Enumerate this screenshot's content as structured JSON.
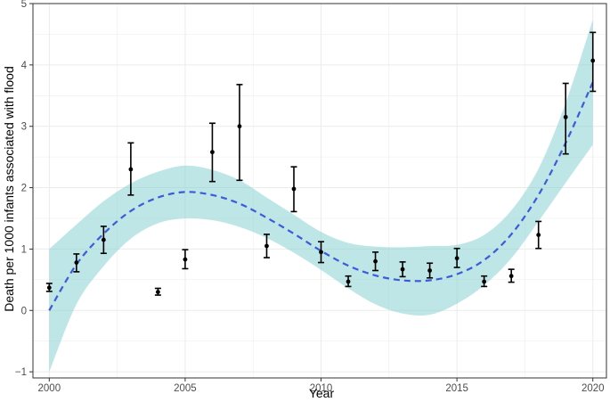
{
  "chart_data": {
    "type": "scatter",
    "xlabel": "Year",
    "ylabel": "Death per 1000 infants associated with flood",
    "xlim": [
      1999.4,
      2020.5
    ],
    "ylim": [
      -1.1,
      5.0
    ],
    "x_ticks": [
      2000,
      2005,
      2010,
      2015,
      2020
    ],
    "x_tick_labels": [
      "2000",
      "2005",
      "2010",
      "2015",
      "2020"
    ],
    "y_ticks": [
      -1,
      0,
      1,
      2,
      3,
      4,
      5
    ],
    "y_tick_labels": [
      "−1",
      "0",
      "1",
      "2",
      "3",
      "4",
      "5"
    ],
    "grid": true,
    "observations": [
      {
        "x": 2000,
        "y": 0.37,
        "low": 0.31,
        "high": 0.44
      },
      {
        "x": 2001,
        "y": 0.78,
        "low": 0.63,
        "high": 0.92
      },
      {
        "x": 2002,
        "y": 1.15,
        "low": 0.93,
        "high": 1.37
      },
      {
        "x": 2003,
        "y": 2.3,
        "low": 1.88,
        "high": 2.73
      },
      {
        "x": 2004,
        "y": 0.3,
        "low": 0.25,
        "high": 0.36
      },
      {
        "x": 2005,
        "y": 0.83,
        "low": 0.68,
        "high": 0.99
      },
      {
        "x": 2006,
        "y": 2.58,
        "low": 2.1,
        "high": 3.05
      },
      {
        "x": 2007,
        "y": 3.0,
        "low": 2.12,
        "high": 3.68
      },
      {
        "x": 2008,
        "y": 1.05,
        "low": 0.86,
        "high": 1.24
      },
      {
        "x": 2009,
        "y": 1.98,
        "low": 1.61,
        "high": 2.34
      },
      {
        "x": 2010,
        "y": 0.95,
        "low": 0.78,
        "high": 1.12
      },
      {
        "x": 2011,
        "y": 0.47,
        "low": 0.39,
        "high": 0.56
      },
      {
        "x": 2012,
        "y": 0.8,
        "low": 0.65,
        "high": 0.95
      },
      {
        "x": 2013,
        "y": 0.67,
        "low": 0.55,
        "high": 0.79
      },
      {
        "x": 2014,
        "y": 0.65,
        "low": 0.53,
        "high": 0.77
      },
      {
        "x": 2015,
        "y": 0.85,
        "low": 0.7,
        "high": 1.01
      },
      {
        "x": 2016,
        "y": 0.47,
        "low": 0.39,
        "high": 0.56
      },
      {
        "x": 2017,
        "y": 0.56,
        "low": 0.46,
        "high": 0.67
      },
      {
        "x": 2018,
        "y": 1.23,
        "low": 1.01,
        "high": 1.45
      },
      {
        "x": 2019,
        "y": 3.15,
        "low": 2.55,
        "high": 3.7
      },
      {
        "x": 2020,
        "y": 4.07,
        "low": 3.57,
        "high": 4.53
      }
    ],
    "fit": {
      "style": "dashed",
      "x": [
        2000,
        2001,
        2002,
        2003,
        2004,
        2005,
        2006,
        2007,
        2008,
        2009,
        2010,
        2011,
        2012,
        2013,
        2014,
        2015,
        2016,
        2017,
        2018,
        2019,
        2020
      ],
      "y": [
        0.0,
        0.75,
        1.25,
        1.62,
        1.84,
        1.93,
        1.88,
        1.74,
        1.51,
        1.25,
        0.97,
        0.73,
        0.57,
        0.49,
        0.49,
        0.59,
        0.82,
        1.24,
        1.88,
        2.73,
        3.72
      ],
      "lower": [
        -1.0,
        0.1,
        0.72,
        1.17,
        1.42,
        1.5,
        1.47,
        1.36,
        1.18,
        0.94,
        0.66,
        0.36,
        0.1,
        -0.05,
        -0.07,
        0.11,
        0.41,
        0.85,
        1.45,
        2.08,
        2.7
      ],
      "upper": [
        1.0,
        1.4,
        1.78,
        2.07,
        2.26,
        2.36,
        2.29,
        2.12,
        1.84,
        1.56,
        1.28,
        1.1,
        1.04,
        1.03,
        1.05,
        1.07,
        1.23,
        1.63,
        2.31,
        3.38,
        4.74
      ]
    },
    "colors": {
      "band": "#7fcdcd",
      "band_opacity": 0.5,
      "fit_line": "#3b5bdb",
      "points": "#000000",
      "grid": "#ebebeb",
      "panel_border": "#333333"
    }
  }
}
